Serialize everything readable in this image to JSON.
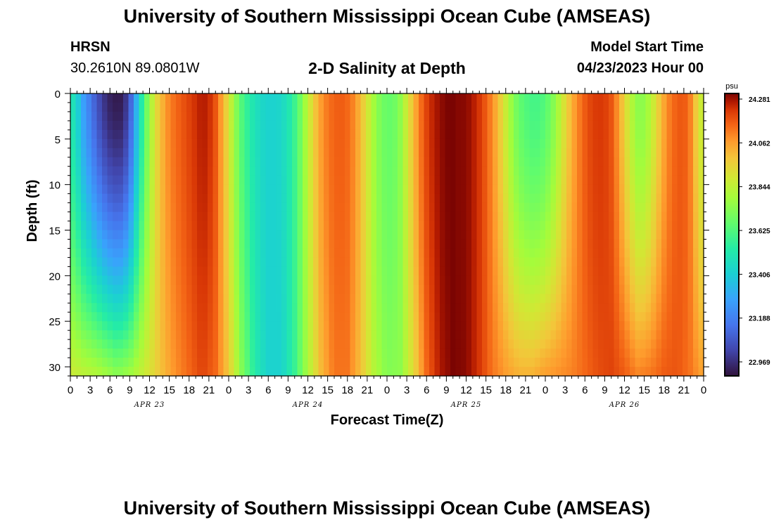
{
  "header": {
    "title": "University of Southern Mississippi Ocean Cube (AMSEAS)",
    "station": "HRSN",
    "coords": "30.2610N  89.0801W",
    "subtitle": "2-D Salinity at Depth",
    "model_start_label": "Model Start Time",
    "model_start_value": "04/23/2023 Hour 00"
  },
  "footer": {
    "title": "University of Southern Mississippi Ocean Cube (AMSEAS)"
  },
  "chart_data": {
    "type": "heatmap",
    "title": "2-D Salinity at Depth",
    "xlabel": "Forecast Time(Z)",
    "ylabel": "Depth (ft)",
    "x_range_hours": [
      0,
      96
    ],
    "y_range_ft": [
      0,
      31
    ],
    "x_ticks": [
      "0",
      "3",
      "6",
      "9",
      "12",
      "15",
      "18",
      "21",
      "0",
      "3",
      "6",
      "9",
      "12",
      "15",
      "18",
      "21",
      "0",
      "3",
      "6",
      "9",
      "12",
      "15",
      "18",
      "21",
      "0",
      "3",
      "6",
      "9",
      "12",
      "15",
      "18",
      "21",
      "0"
    ],
    "y_ticks": [
      "0",
      "5",
      "10",
      "15",
      "20",
      "25",
      "30"
    ],
    "day_labels": [
      "APR 23",
      "APR 24",
      "APR 25",
      "APR 26"
    ],
    "colorbar": {
      "unit": "psu",
      "min": 22.88,
      "max": 24.281,
      "tick_labels": [
        "24.281",
        "24.062",
        "23.844",
        "23.625",
        "23.406",
        "23.188",
        "22.969"
      ]
    },
    "surface_salinity": [
      [
        0,
        23.5
      ],
      [
        1,
        23.4
      ],
      [
        2,
        23.25
      ],
      [
        3,
        23.15
      ],
      [
        4,
        23.05
      ],
      [
        5,
        22.97
      ],
      [
        6,
        22.92
      ],
      [
        7,
        22.9
      ],
      [
        8,
        22.91
      ],
      [
        9,
        23.05
      ],
      [
        10,
        23.3
      ],
      [
        11,
        23.55
      ],
      [
        12,
        23.75
      ],
      [
        13,
        23.9
      ],
      [
        14,
        24.0
      ],
      [
        15,
        24.08
      ],
      [
        16,
        24.12
      ],
      [
        17,
        24.15
      ],
      [
        18,
        24.18
      ],
      [
        19,
        24.21
      ],
      [
        20,
        24.24
      ],
      [
        21,
        24.22
      ],
      [
        22,
        24.15
      ],
      [
        23,
        24.02
      ],
      [
        24,
        23.88
      ],
      [
        25,
        23.72
      ],
      [
        26,
        23.6
      ],
      [
        27,
        23.52
      ],
      [
        28,
        23.46
      ],
      [
        29,
        23.42
      ],
      [
        30,
        23.4
      ],
      [
        31,
        23.4
      ],
      [
        32,
        23.42
      ],
      [
        33,
        23.47
      ],
      [
        34,
        23.56
      ],
      [
        35,
        23.68
      ],
      [
        36,
        23.82
      ],
      [
        37,
        23.95
      ],
      [
        38,
        24.04
      ],
      [
        39,
        24.1
      ],
      [
        40,
        24.13
      ],
      [
        41,
        24.14
      ],
      [
        42,
        24.12
      ],
      [
        43,
        24.07
      ],
      [
        44,
        23.98
      ],
      [
        45,
        23.87
      ],
      [
        46,
        23.76
      ],
      [
        47,
        23.68
      ],
      [
        48,
        23.64
      ],
      [
        49,
        23.65
      ],
      [
        50,
        23.72
      ],
      [
        51,
        23.85
      ],
      [
        52,
        23.98
      ],
      [
        53,
        24.1
      ],
      [
        54,
        24.18
      ],
      [
        55,
        24.23
      ],
      [
        56,
        24.26
      ],
      [
        57,
        24.28
      ],
      [
        58,
        24.28
      ],
      [
        59,
        24.27
      ],
      [
        60,
        24.27
      ],
      [
        61,
        24.24
      ],
      [
        62,
        24.2
      ],
      [
        63,
        24.14
      ],
      [
        64,
        24.06
      ],
      [
        65,
        23.96
      ],
      [
        66,
        23.84
      ],
      [
        67,
        23.72
      ],
      [
        68,
        23.64
      ],
      [
        69,
        23.6
      ],
      [
        70,
        23.58
      ],
      [
        71,
        23.58
      ],
      [
        72,
        23.61
      ],
      [
        73,
        23.68
      ],
      [
        74,
        23.78
      ],
      [
        75,
        23.9
      ],
      [
        76,
        24.0
      ],
      [
        77,
        24.08
      ],
      [
        78,
        24.14
      ],
      [
        79,
        24.18
      ],
      [
        80,
        24.2
      ],
      [
        81,
        24.19
      ],
      [
        82,
        24.15
      ],
      [
        83,
        24.05
      ],
      [
        84,
        23.92
      ],
      [
        85,
        23.8
      ],
      [
        86,
        23.72
      ],
      [
        87,
        23.72
      ],
      [
        88,
        23.8
      ],
      [
        89,
        23.92
      ],
      [
        90,
        24.02
      ],
      [
        91,
        24.1
      ],
      [
        92,
        24.14
      ],
      [
        93,
        24.15
      ],
      [
        94,
        24.08
      ],
      [
        95,
        23.92
      ],
      [
        96,
        23.8
      ]
    ],
    "bottom_salinity": [
      [
        0,
        23.85
      ],
      [
        2,
        23.82
      ],
      [
        4,
        23.8
      ],
      [
        6,
        23.75
      ],
      [
        7,
        23.72
      ],
      [
        8,
        23.74
      ],
      [
        9,
        23.76
      ],
      [
        10,
        23.8
      ],
      [
        12,
        23.88
      ],
      [
        14,
        23.98
      ],
      [
        16,
        24.06
      ],
      [
        18,
        24.12
      ],
      [
        20,
        24.18
      ],
      [
        22,
        24.12
      ],
      [
        24,
        23.95
      ],
      [
        26,
        23.7
      ],
      [
        28,
        23.5
      ],
      [
        30,
        23.4
      ],
      [
        32,
        23.4
      ],
      [
        34,
        23.55
      ],
      [
        36,
        23.78
      ],
      [
        38,
        23.98
      ],
      [
        40,
        24.1
      ],
      [
        42,
        24.1
      ],
      [
        44,
        23.97
      ],
      [
        46,
        23.8
      ],
      [
        48,
        23.7
      ],
      [
        50,
        23.72
      ],
      [
        52,
        23.9
      ],
      [
        54,
        24.12
      ],
      [
        56,
        24.24
      ],
      [
        58,
        24.28
      ],
      [
        60,
        24.27
      ],
      [
        62,
        24.2
      ],
      [
        64,
        24.1
      ],
      [
        66,
        24.04
      ],
      [
        68,
        24.0
      ],
      [
        70,
        24.0
      ],
      [
        72,
        24.04
      ],
      [
        74,
        24.06
      ],
      [
        76,
        24.08
      ],
      [
        78,
        24.12
      ],
      [
        80,
        24.16
      ],
      [
        82,
        24.18
      ],
      [
        84,
        24.14
      ],
      [
        86,
        24.08
      ],
      [
        88,
        24.1
      ],
      [
        90,
        24.14
      ],
      [
        92,
        24.15
      ],
      [
        94,
        24.1
      ],
      [
        96,
        24.02
      ]
    ]
  }
}
